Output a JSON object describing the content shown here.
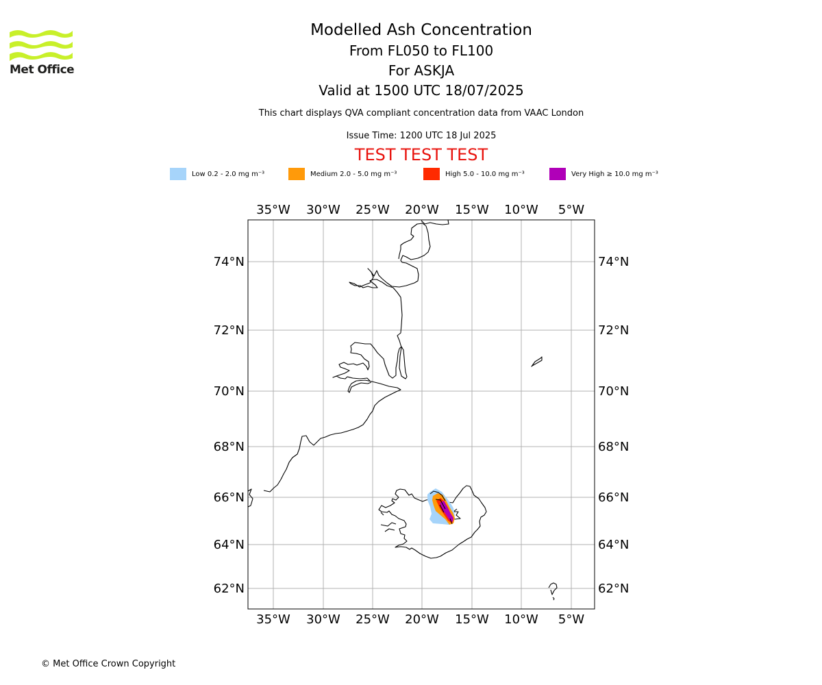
{
  "logo": {
    "text": "Met Office",
    "color": "#c8f02a"
  },
  "title": {
    "line1": "Modelled Ash Concentration",
    "line2": "From FL050 to FL100",
    "line3": "For ASKJA",
    "line4": "Valid at 1500 UTC 18/07/2025"
  },
  "compliance_note": "This chart displays QVA compliant concentration data from VAAC London",
  "issue_time": "Issue Time: 1200 UTC 18 Jul 2025",
  "test_banner": "TEST TEST TEST",
  "legend": [
    {
      "label": "Low 0.2 - 2.0 mg m⁻³",
      "color": "#a6d4fa"
    },
    {
      "label": "Medium 2.0 - 5.0 mg m⁻³",
      "color": "#ff9a0a"
    },
    {
      "label": "High 5.0 - 10.0 mg m⁻³",
      "color": "#ff2a00"
    },
    {
      "label": "Very High ≥ 10.0 mg m⁻³",
      "color": "#b000b8"
    }
  ],
  "map": {
    "lon_ticks": [
      "35°W",
      "30°W",
      "25°W",
      "20°W",
      "15°W",
      "10°W",
      "5°W"
    ],
    "lat_ticks": [
      "74°N",
      "72°N",
      "70°N",
      "68°N",
      "66°N",
      "64°N",
      "62°N"
    ]
  },
  "copyright": "© Met Office Crown Copyright"
}
